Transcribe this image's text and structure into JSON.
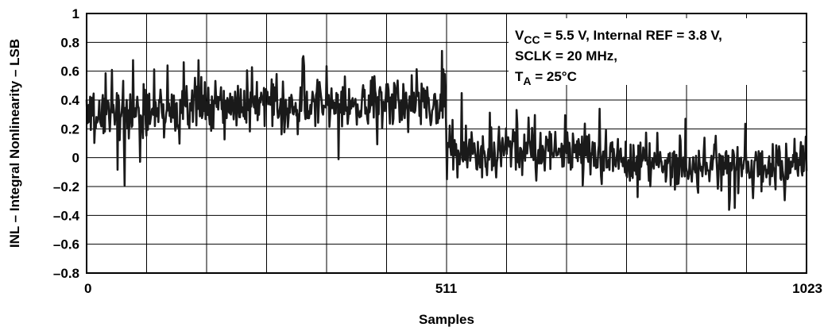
{
  "chart_data": {
    "type": "line",
    "title": "",
    "xlabel": "Samples",
    "ylabel": "INL – Integral Nonlinearity – LSB",
    "xlim": [
      0,
      1023
    ],
    "ylim": [
      -0.8,
      1
    ],
    "x_tick_labels": [
      "0",
      "511",
      "1023"
    ],
    "x_tick_values": [
      0,
      511,
      1023
    ],
    "y_tick_values": [
      1,
      0.8,
      0.6,
      0.4,
      0.2,
      0,
      -0.2,
      -0.4,
      -0.6,
      -0.8
    ],
    "y_tick_labels": [
      "1",
      "0.8",
      "0.6",
      "0.4",
      "0.2",
      "0",
      "–0.2",
      "–0.4",
      "–0.6",
      "–0.8"
    ],
    "grid": true,
    "x_grid_divisions": 12,
    "annotations": [
      {
        "main": "V",
        "sub": "CC",
        "rest": " = 5.5 V, Internal REF = 3.8 V,"
      },
      {
        "main": "SCLK = 20 MHz,",
        "sub": "",
        "rest": ""
      },
      {
        "main": "T",
        "sub": "A",
        "rest": " = 25°C"
      }
    ],
    "series": [
      {
        "color": "#1a1a1a",
        "envelope": [
          {
            "x": 0,
            "mean": 0.3,
            "spread": 0.17
          },
          {
            "x": 128,
            "mean": 0.34,
            "spread": 0.16
          },
          {
            "x": 256,
            "mean": 0.37,
            "spread": 0.15
          },
          {
            "x": 384,
            "mean": 0.38,
            "spread": 0.15
          },
          {
            "x": 510,
            "mean": 0.4,
            "spread": 0.15
          },
          {
            "x": 512,
            "mean": 0.02,
            "spread": 0.14
          },
          {
            "x": 640,
            "mean": 0.1,
            "spread": 0.14
          },
          {
            "x": 768,
            "mean": -0.03,
            "spread": 0.14
          },
          {
            "x": 896,
            "mean": -0.07,
            "spread": 0.14
          },
          {
            "x": 1023,
            "mean": -0.05,
            "spread": 0.14
          }
        ],
        "min": -0.42,
        "max": 0.74
      }
    ]
  }
}
